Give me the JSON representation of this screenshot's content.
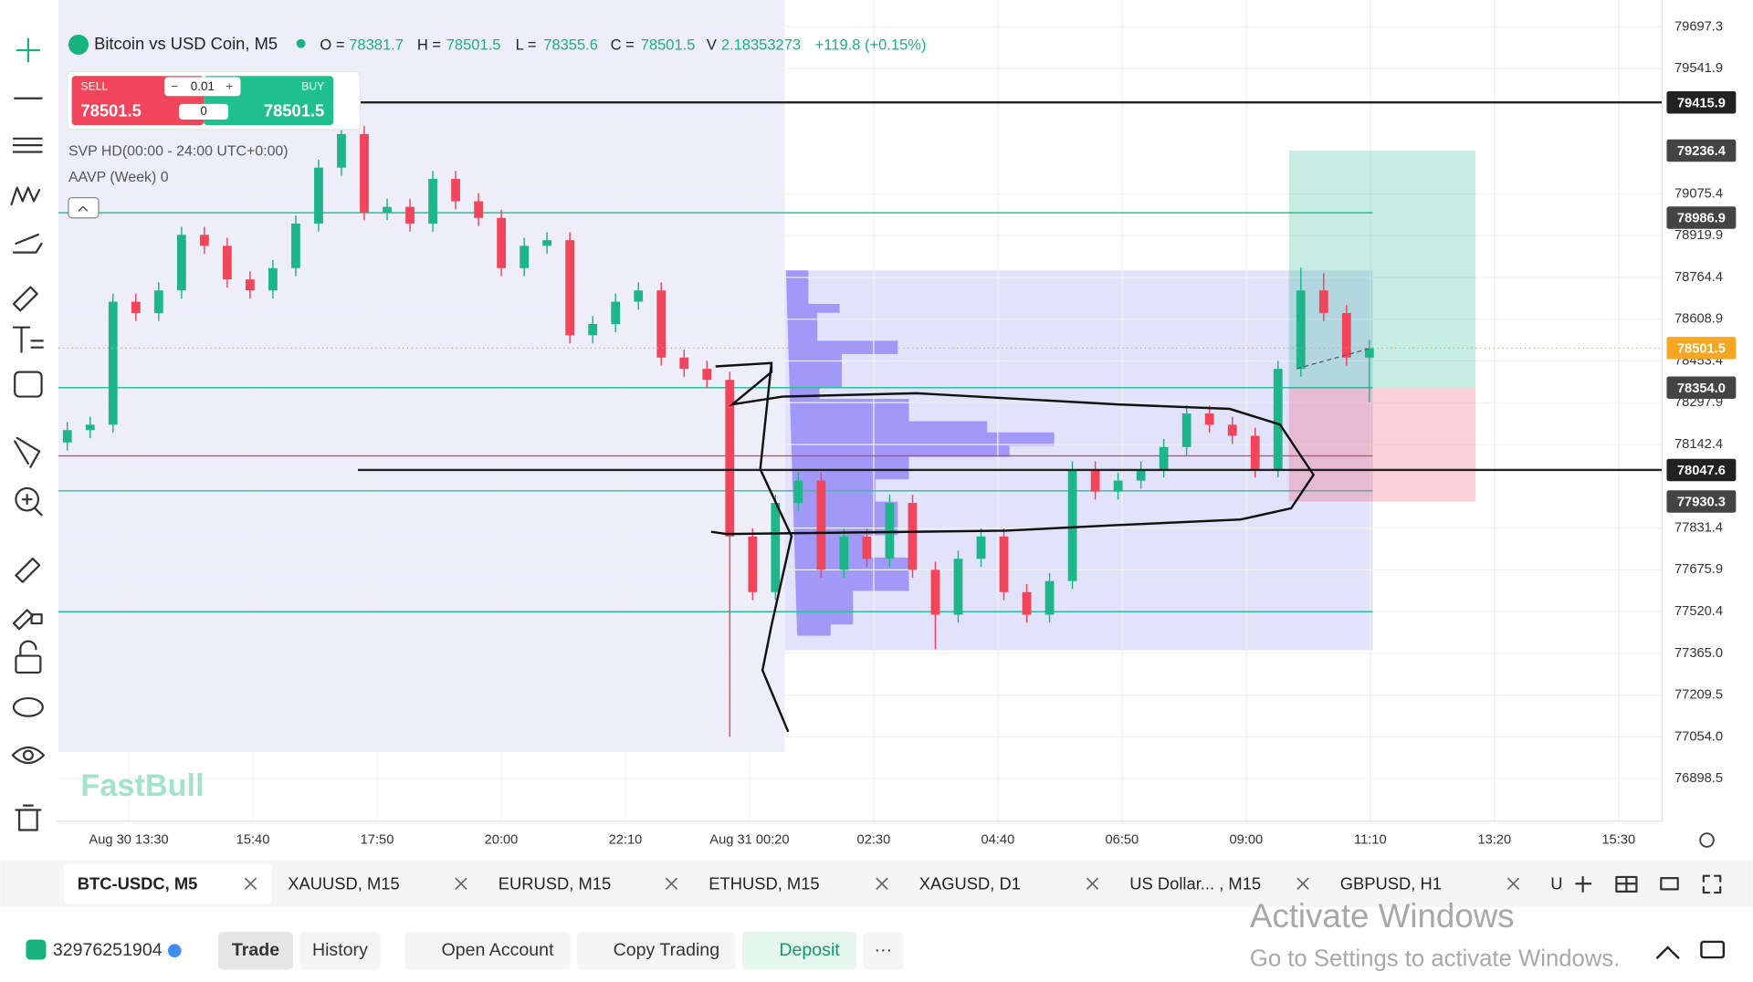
{
  "chart_data": {
    "type": "candlestick",
    "header": {
      "symbol": "Bitcoin vs USD Coin, M5",
      "o_label": "O =",
      "o": 78381.7,
      "h_label": "H =",
      "h": 78501.5,
      "l_label": "L =",
      "l": 78355.6,
      "c_label": "C =",
      "c": 78501.5,
      "v_label": "V",
      "v": 2.18353273,
      "change": "+119.8 (+0.15%)"
    },
    "trade_panel": {
      "sell_label": "SELL",
      "sell": 78501.5,
      "lot": 0.01,
      "buy_label": "BUY",
      "buy": 78501.5,
      "qty": 0
    },
    "indicators": [
      "SVP HD(00:00 - 24:00 UTC+0:00)",
      "AAVP (Week) 0"
    ],
    "watermark": "FastBull",
    "ylim": [
      76740.4,
      79797.1
    ],
    "yticks": [
      79697.3,
      79541.9,
      79075.4,
      78919.9,
      78764.4,
      78608.9,
      78453.4,
      78297.9,
      78142.4,
      77831.4,
      77675.9,
      77520.4,
      {
        "value": 77365,
        "label": "77365.0"
      },
      77209.5,
      {
        "value": 77054,
        "label": "77054.0"
      },
      76898.5
    ],
    "x_labels": [
      "Aug 30 13:30",
      "15:40",
      "17:50",
      "20:00",
      "22:10",
      "Aug 31 00:20",
      "02:30",
      "04:40",
      "06:50",
      "09:00",
      "11:10",
      "13:20",
      "15:30"
    ],
    "up_color": "#1fb58a",
    "down_color": "#f0455a",
    "candles": [
      [
        78150,
        78226,
        78120,
        78196
      ],
      [
        78196,
        78246,
        78166,
        78216
      ],
      [
        78216,
        78704,
        78186,
        78674
      ],
      [
        78674,
        78704,
        78602,
        78632
      ],
      [
        78632,
        78746,
        78602,
        78716
      ],
      [
        78716,
        78953,
        78686,
        78923
      ],
      [
        78923,
        78953,
        78852,
        78882
      ],
      [
        78882,
        78912,
        78727,
        78757
      ],
      [
        78757,
        78787,
        78686,
        78716
      ],
      [
        78716,
        78829,
        78686,
        78799
      ],
      [
        78799,
        78995,
        78769,
        78965
      ],
      [
        78965,
        79203,
        78935,
        79173
      ],
      [
        79173,
        79416,
        79143,
        79298
      ],
      [
        79298,
        79328,
        78977,
        79007
      ],
      [
        79007,
        79057,
        78977,
        79027
      ],
      [
        79027,
        79057,
        78935,
        78965
      ],
      [
        78965,
        79161,
        78935,
        79131
      ],
      [
        79131,
        79161,
        79018,
        79048
      ],
      [
        79048,
        79078,
        78956,
        78986
      ],
      [
        78986,
        79016,
        78769,
        78799
      ],
      [
        78799,
        78912,
        78769,
        78882
      ],
      [
        78882,
        78933,
        78852,
        78903
      ],
      [
        78903,
        78933,
        78519,
        78549
      ],
      [
        78549,
        78621,
        78519,
        78591
      ],
      [
        78591,
        78704,
        78561,
        78674
      ],
      [
        78674,
        78746,
        78644,
        78716
      ],
      [
        78716,
        78746,
        78436,
        78466
      ],
      [
        78466,
        78496,
        78394,
        78424
      ],
      [
        78424,
        78454,
        78353,
        78383
      ],
      [
        78383,
        78413,
        77054,
        77800
      ],
      [
        77800,
        77830,
        77563,
        77593
      ],
      [
        77593,
        77955,
        77563,
        77925
      ],
      [
        77925,
        78038,
        77895,
        78008
      ],
      [
        78008,
        78038,
        77646,
        77676
      ],
      [
        77676,
        77830,
        77646,
        77800
      ],
      [
        77800,
        77830,
        77687,
        77717
      ],
      [
        77717,
        77955,
        77687,
        77925
      ],
      [
        77925,
        77955,
        77646,
        77676
      ],
      [
        77676,
        77706,
        77380,
        77509
      ],
      [
        77509,
        77747,
        77479,
        77717
      ],
      [
        77717,
        77830,
        77687,
        77800
      ],
      [
        77800,
        77830,
        77563,
        77593
      ],
      [
        77593,
        77623,
        77479,
        77509
      ],
      [
        77509,
        77664,
        77479,
        77634
      ],
      [
        77634,
        78080,
        77604,
        78050
      ],
      [
        78050,
        78080,
        77937,
        77967
      ],
      [
        77967,
        78038,
        77937,
        78008
      ],
      [
        78008,
        78080,
        77978,
        78050
      ],
      [
        78050,
        78163,
        78020,
        78133
      ],
      [
        78133,
        78288,
        78103,
        78258
      ],
      [
        78258,
        78288,
        78186,
        78216
      ],
      [
        78216,
        78246,
        78145,
        78175
      ],
      [
        78175,
        78205,
        78020,
        78050
      ],
      [
        78050,
        78454,
        78020,
        78424
      ],
      [
        78424,
        78800,
        78394,
        78716
      ],
      [
        78716,
        78780,
        78602,
        78632
      ],
      [
        78632,
        78662,
        78436,
        78466
      ],
      [
        78466,
        78532,
        78300,
        78501.5
      ]
    ],
    "badges": [
      {
        "value": 79415.9,
        "color": "#222222",
        "line": true
      },
      {
        "value": 79236.4,
        "color": "#444444",
        "line": false
      },
      {
        "value": 78986.9,
        "color": "#444444",
        "line": false
      },
      {
        "value": 78501.5,
        "color": "#f5a623",
        "line": false
      },
      {
        "value": {
          "value": 78354,
          "label": "78354.0"
        },
        "color": "#444444",
        "line": false
      },
      {
        "value": 78047.6,
        "color": "#222222",
        "line": true
      },
      {
        "value": 77930.3,
        "color": "#444444",
        "line": false
      }
    ],
    "level_lines": {
      "color": "#2bbf9a",
      "values": [
        79005,
        78354,
        77970,
        77520
      ]
    },
    "red_level": {
      "color": "#e8394d",
      "value": 78100
    },
    "position": {
      "target": 79236.4,
      "entry": 78354,
      "stop": 77930.3
    }
  },
  "tabs": [
    "BTC-USDC, M5",
    "XAUUSD, M15",
    "EURUSD, M15",
    "ETHUSD, M15",
    "XAGUSD, D1",
    "US Dollar... , M15",
    "GBPUSD, H1",
    "U"
  ],
  "bottom_bar": {
    "account": "32976251904",
    "buttons": [
      "Trade",
      "History",
      "Open Account",
      "Copy Trading",
      "Deposit",
      "···"
    ]
  },
  "overlay": {
    "line1": "Activate Windows",
    "line2": "Go to Settings to activate Windows."
  }
}
